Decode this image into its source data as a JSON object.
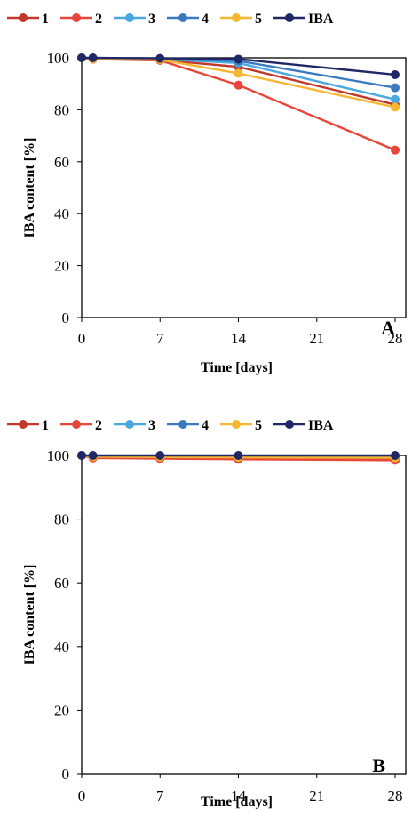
{
  "chart_data": [
    {
      "type": "line",
      "panel_label": "A",
      "xlabel": "Time [days]",
      "ylabel": "IBA content  [%]",
      "xlim": [
        0,
        28
      ],
      "ylim": [
        0,
        100
      ],
      "xticks": [
        0,
        7,
        14,
        21,
        28
      ],
      "yticks": [
        0,
        20,
        40,
        60,
        80,
        100
      ],
      "legend_position": "top",
      "grid": false,
      "series": [
        {
          "name": "1",
          "color": "#c0392b",
          "x": [
            0,
            1,
            7,
            14,
            28
          ],
          "y": [
            100,
            99.5,
            99.2,
            96.5,
            82
          ]
        },
        {
          "name": "2",
          "color": "#e8463b",
          "x": [
            0,
            1,
            7,
            14,
            28
          ],
          "y": [
            100,
            99.5,
            99,
            89.5,
            64.5
          ]
        },
        {
          "name": "3",
          "color": "#4aa8e0",
          "x": [
            0,
            1,
            7,
            14,
            28
          ],
          "y": [
            100,
            99.7,
            99.5,
            98,
            84
          ]
        },
        {
          "name": "4",
          "color": "#3a78c0",
          "x": [
            0,
            1,
            7,
            14,
            28
          ],
          "y": [
            100,
            99.8,
            99.6,
            98.8,
            88.5
          ]
        },
        {
          "name": "5",
          "color": "#f5b731",
          "x": [
            0,
            1,
            7,
            14,
            28
          ],
          "y": [
            100,
            99.6,
            99.3,
            94,
            81
          ]
        },
        {
          "name": "IBA",
          "color": "#1f2766",
          "x": [
            0,
            1,
            7,
            14,
            28
          ],
          "y": [
            100,
            100,
            99.8,
            99.5,
            93.5
          ]
        }
      ]
    },
    {
      "type": "line",
      "panel_label": "B",
      "xlabel": "Time [days]",
      "ylabel": "IBA content [%]",
      "xlim": [
        0,
        28
      ],
      "ylim": [
        0,
        100
      ],
      "xticks": [
        0,
        7,
        14,
        21,
        28
      ],
      "yticks": [
        0,
        20,
        40,
        60,
        80,
        100
      ],
      "legend_position": "top",
      "grid": false,
      "series": [
        {
          "name": "1",
          "color": "#c0392b",
          "x": [
            0,
            1,
            7,
            14,
            28
          ],
          "y": [
            100,
            99.5,
            99.4,
            99.3,
            99
          ]
        },
        {
          "name": "2",
          "color": "#e8463b",
          "x": [
            0,
            1,
            7,
            14,
            28
          ],
          "y": [
            100,
            99.2,
            99,
            98.8,
            98.5
          ]
        },
        {
          "name": "3",
          "color": "#4aa8e0",
          "x": [
            0,
            1,
            7,
            14,
            28
          ],
          "y": [
            100,
            99.7,
            99.6,
            99.5,
            99.4
          ]
        },
        {
          "name": "4",
          "color": "#3a78c0",
          "x": [
            0,
            1,
            7,
            14,
            28
          ],
          "y": [
            100,
            99.8,
            99.7,
            99.6,
            99.6
          ]
        },
        {
          "name": "5",
          "color": "#f5b731",
          "x": [
            0,
            1,
            7,
            14,
            28
          ],
          "y": [
            100,
            99.6,
            99.5,
            99.4,
            99.3
          ]
        },
        {
          "name": "IBA",
          "color": "#1f2766",
          "x": [
            0,
            1,
            7,
            14,
            28
          ],
          "y": [
            100,
            100,
            100,
            100,
            100
          ]
        }
      ]
    }
  ]
}
